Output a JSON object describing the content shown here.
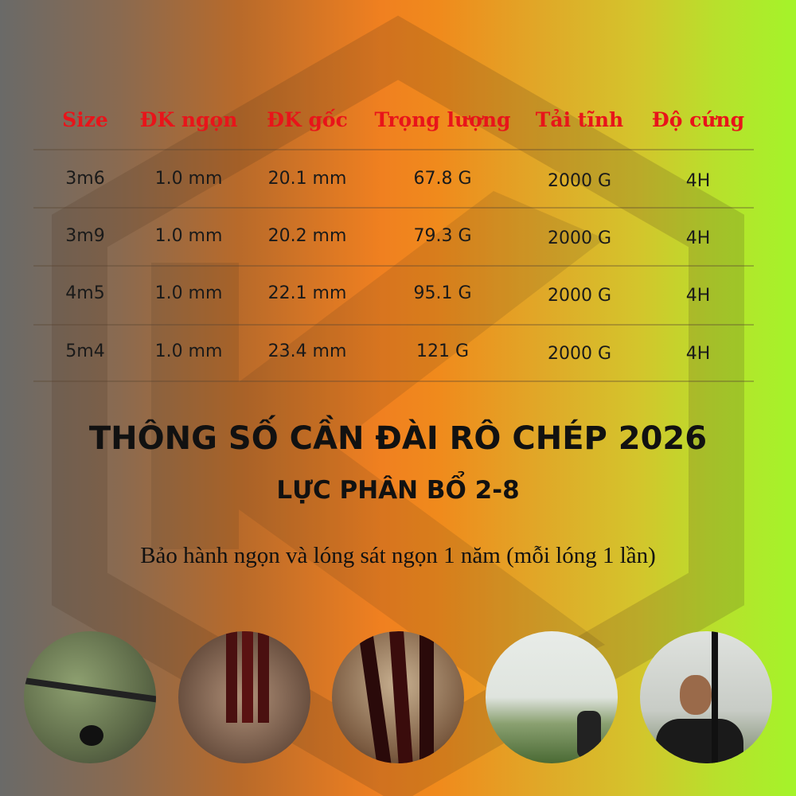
{
  "table": {
    "headers": [
      "Size",
      "ĐK ngọn",
      "ĐK gốc",
      "Trọng lượng",
      "Tải tĩnh",
      "Độ cứng"
    ],
    "rows": [
      [
        "3m6",
        "1.0 mm",
        "20.1 mm",
        "67.8 G",
        "2000 G",
        "4H"
      ],
      [
        "3m9",
        "1.0 mm",
        "20.2 mm",
        "79.3 G",
        "2000 G",
        "4H"
      ],
      [
        "4m5",
        "1.0 mm",
        "22.1 mm",
        "95.1 G",
        "2000 G",
        "4H"
      ],
      [
        "5m4",
        "1.0 mm",
        "23.4 mm",
        "121 G",
        "2000 G",
        "4H"
      ]
    ]
  },
  "title": "THÔNG SỐ CẦN ĐÀI RÔ CHÉP 2026",
  "subtitle": "LỰC PHÂN BỔ 2-8",
  "warranty_note": "Bảo hành ngọn và lóng sát ngọn 1 năm (mỗi lóng 1 lần)",
  "colors": {
    "header_text": "#e8141a",
    "gradient_left": "#6a6a68",
    "gradient_mid": "#f08020",
    "gradient_right": "#a4f42a"
  },
  "photos": [
    "rod-tip-closeup",
    "rod-sections-in-hand",
    "rod-blanks-closeup",
    "angler-with-bent-rod",
    "angler-holding-rods"
  ]
}
